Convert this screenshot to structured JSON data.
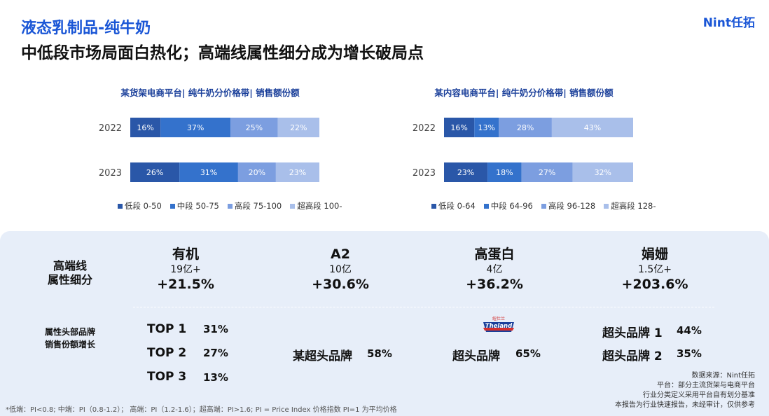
{
  "header": {
    "title": "液态乳制品-纯牛奶",
    "subtitle": "中低段市场局面白热化；高端线属性细分成为增长破局点",
    "logo": "Nint任拓"
  },
  "chart_data": [
    {
      "type": "bar",
      "stacked": "100%",
      "orientation": "horizontal",
      "title": "某货架电商平台| 纯牛奶分价格带| 销售额份额",
      "categories": [
        "2022",
        "2023"
      ],
      "series": [
        {
          "name": "低段 0-50",
          "color": "#2a57a8",
          "values": [
            16,
            26
          ]
        },
        {
          "name": "中段 50-75",
          "color": "#3472cc",
          "values": [
            37,
            31
          ]
        },
        {
          "name": "高段 75-100",
          "color": "#7c9ee0",
          "values": [
            25,
            20
          ]
        },
        {
          "name": "超高段 100-",
          "color": "#a9bfea",
          "values": [
            22,
            23
          ]
        }
      ],
      "labels": [
        [
          "16%",
          "37%",
          "25%",
          "22%"
        ],
        [
          "26%",
          "31%",
          "20%",
          "23%"
        ]
      ],
      "legend_position": "bottom"
    },
    {
      "type": "bar",
      "stacked": "100%",
      "orientation": "horizontal",
      "title": "某内容电商平台| 纯牛奶分价格带| 销售额份额",
      "categories": [
        "2022",
        "2023"
      ],
      "series": [
        {
          "name": "低段 0-64",
          "color": "#2a57a8",
          "values": [
            16,
            23
          ]
        },
        {
          "name": "中段 64-96",
          "color": "#3472cc",
          "values": [
            13,
            18
          ]
        },
        {
          "name": "高段 96-128",
          "color": "#7c9ee0",
          "values": [
            28,
            27
          ]
        },
        {
          "name": "超高段 128-",
          "color": "#a9bfea",
          "values": [
            43,
            32
          ]
        }
      ],
      "labels": [
        [
          "16%",
          "13%",
          "28%",
          "43%"
        ],
        [
          "23%",
          "18%",
          "27%",
          "32%"
        ]
      ],
      "legend_position": "bottom"
    }
  ],
  "panel": {
    "row1_label": "高端线\n属性细分",
    "row2_label": "属性头部品牌\n销售份额增长",
    "attributes": [
      {
        "name": "有机",
        "size": "19亿+",
        "growth": "+21.5%"
      },
      {
        "name": "A2",
        "size": "10亿",
        "growth": "+30.6%"
      },
      {
        "name": "高蛋白",
        "size": "4亿",
        "growth": "+36.2%"
      },
      {
        "name": "娟姗",
        "size": "1.5亿+",
        "growth": "+203.6%"
      }
    ],
    "organic_brands": [
      {
        "label": "TOP 1",
        "value": "31%"
      },
      {
        "label": "TOP 2",
        "value": "27%"
      },
      {
        "label": "TOP 3",
        "value": "13%"
      }
    ],
    "a2_brand": {
      "label": "某超头品牌",
      "value": "58%"
    },
    "protein_brand": {
      "logo_text": "Theland",
      "logo_top": "纽仕兰",
      "label": "超头品牌",
      "value": "65%"
    },
    "jersey_brands": [
      {
        "label": "超头品牌 1",
        "value": "44%"
      },
      {
        "label": "超头品牌 2",
        "value": "35%"
      }
    ]
  },
  "source_lines": [
    "数据来源：Nint任拓",
    "平台：部分主流货架与电商平台",
    "行业分类定义采用平台自有划分基准",
    "本报告为行业快速报告，未经审计，仅供参考"
  ],
  "footnote": "*低端：PI<0.8; 中端：PI（0.8-1.2）；  高端：PI（1.2-1.6）；超高端：PI>1.6;      PI = Price Index 价格指数 PI=1 为平均价格"
}
